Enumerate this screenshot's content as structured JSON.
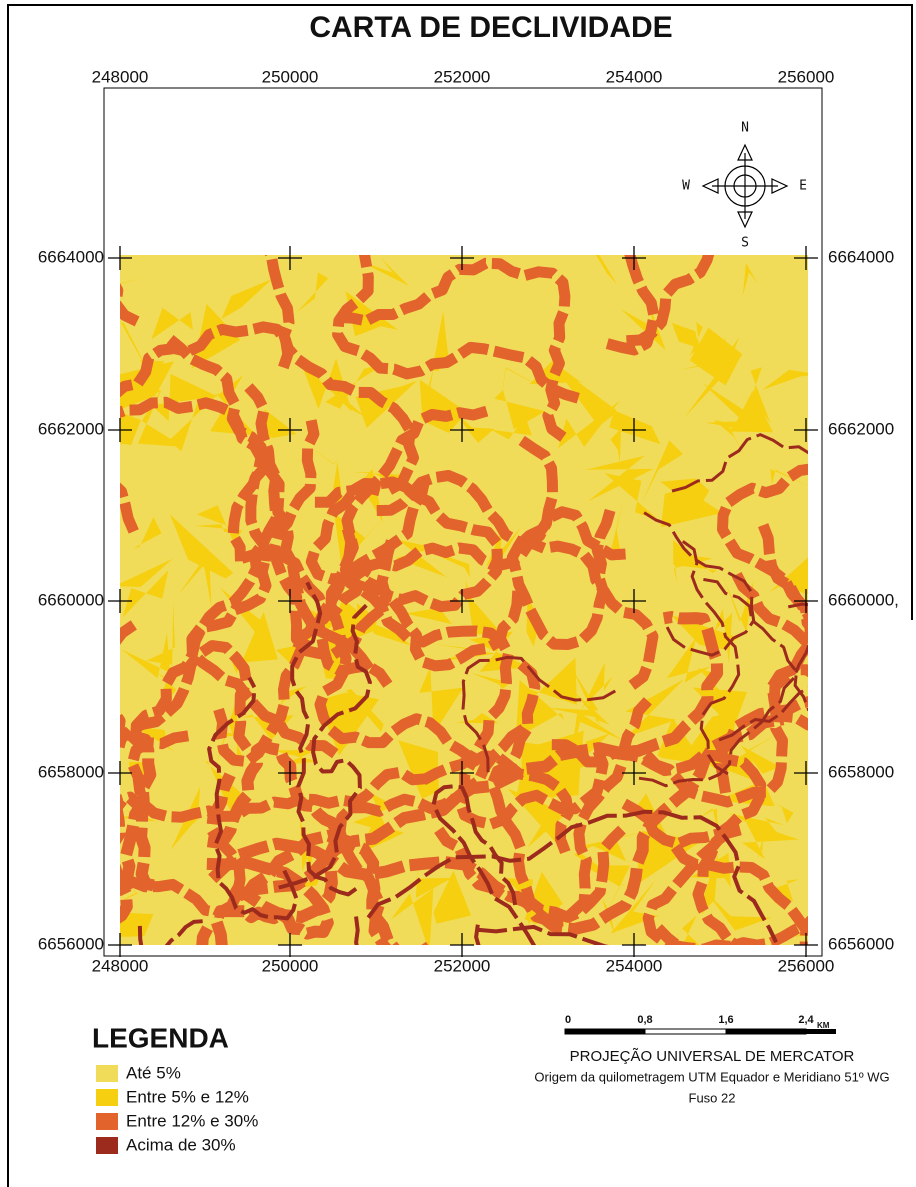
{
  "title": "CARTA DE DECLIVIDADE",
  "top_x_labels": [
    "248000",
    "250000",
    "252000",
    "254000",
    "256000"
  ],
  "bottom_x_labels": [
    "248000",
    "250000",
    "252000",
    "254000",
    "256000"
  ],
  "left_y_labels": [
    "6664000",
    "6662000",
    "6660000",
    "6658000",
    "6656000"
  ],
  "right_y_labels": [
    "6664000",
    "6662000",
    "6660000,",
    "6658000",
    "6656000"
  ],
  "compass": {
    "n": "N",
    "s": "S",
    "w": "W",
    "e": "E"
  },
  "legend": {
    "title": "LEGENDA",
    "items": [
      {
        "label": "Até 5%",
        "color": "#f1dc5a"
      },
      {
        "label": "Entre 5% e 12%",
        "color": "#f5cf10"
      },
      {
        "label": "Entre 12% e 30%",
        "color": "#e2632c"
      },
      {
        "label": "Acima de 30%",
        "color": "#9c2b1e"
      }
    ]
  },
  "scale": {
    "labels": [
      "0",
      "0,8",
      "1,6",
      "2,4"
    ],
    "unit": "KM"
  },
  "projection": [
    "PROJEÇÃO UNIVERSAL DE MERCATOR",
    "Origem da quilometragem UTM  Equador e Meridiano 51º WG",
    "Fuso 22"
  ]
}
